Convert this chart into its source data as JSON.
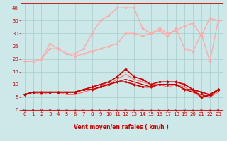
{
  "x": [
    0,
    1,
    2,
    3,
    4,
    5,
    6,
    7,
    8,
    9,
    10,
    11,
    12,
    13,
    14,
    15,
    16,
    17,
    18,
    19,
    20,
    21,
    22,
    23
  ],
  "bg_color": "#cce8e8",
  "grid_color": "#aacccc",
  "xlabel": "Vent moyen/en rafales ( km/h )",
  "xlabel_color": "#cc0000",
  "tick_color": "#cc0000",
  "ylim": [
    0,
    42
  ],
  "xlim": [
    -0.5,
    23.5
  ],
  "yticks": [
    0,
    5,
    10,
    15,
    20,
    25,
    30,
    35,
    40
  ],
  "lines": [
    {
      "y": [
        19,
        19,
        20,
        24,
        24,
        22,
        21,
        22,
        23,
        24,
        25,
        26,
        30,
        30,
        29,
        30,
        31,
        29,
        32,
        24,
        23,
        30,
        19,
        35
      ],
      "color": "#ffaaaa",
      "lw": 1.0,
      "marker": "D",
      "ms": 2.0,
      "zorder": 2
    },
    {
      "y": [
        19,
        19,
        20,
        26,
        24,
        22,
        22,
        24,
        30,
        35,
        37,
        40,
        40,
        40,
        32,
        30,
        32,
        30,
        31,
        33,
        34,
        29,
        36,
        35
      ],
      "color": "#ffaaaa",
      "lw": 1.0,
      "marker": "D",
      "ms": 2.0,
      "zorder": 2
    },
    {
      "y": [
        6,
        7,
        6,
        7,
        7,
        6,
        6,
        7,
        8,
        9,
        10,
        11,
        12,
        11,
        10,
        9,
        10,
        9,
        10,
        8,
        7,
        6,
        5,
        7
      ],
      "color": "#ff6666",
      "lw": 0.8,
      "marker": null,
      "ms": 0,
      "zorder": 2
    },
    {
      "y": [
        6,
        7,
        7,
        7,
        7,
        7,
        7,
        8,
        9,
        10,
        10,
        12,
        14,
        12,
        11,
        10,
        10,
        10,
        10,
        9,
        7,
        5,
        6,
        8
      ],
      "color": "#ff6666",
      "lw": 0.8,
      "marker": null,
      "ms": 0,
      "zorder": 2
    },
    {
      "y": [
        6,
        7,
        7,
        7,
        7,
        7,
        7,
        8,
        8,
        9,
        10,
        11,
        12,
        11,
        10,
        9,
        10,
        10,
        10,
        8,
        7,
        6,
        5,
        8
      ],
      "color": "#cc0000",
      "lw": 0.8,
      "marker": null,
      "ms": 0,
      "zorder": 2
    },
    {
      "y": [
        6,
        7,
        7,
        7,
        7,
        7,
        7,
        8,
        8,
        9,
        10,
        11,
        11,
        10,
        9,
        9,
        10,
        10,
        10,
        8,
        8,
        7,
        6,
        8
      ],
      "color": "#cc0000",
      "lw": 1.2,
      "marker": "D",
      "ms": 2.0,
      "zorder": 3
    },
    {
      "y": [
        6,
        7,
        7,
        7,
        7,
        7,
        7,
        8,
        9,
        10,
        11,
        13,
        16,
        13,
        12,
        10,
        11,
        11,
        11,
        10,
        8,
        5,
        6,
        8
      ],
      "color": "#cc0000",
      "lw": 1.2,
      "marker": "D",
      "ms": 2.0,
      "zorder": 3
    }
  ],
  "arrow_color": "#cc0000",
  "axis_fontsize": 5.5,
  "tick_fontsize": 5.0
}
